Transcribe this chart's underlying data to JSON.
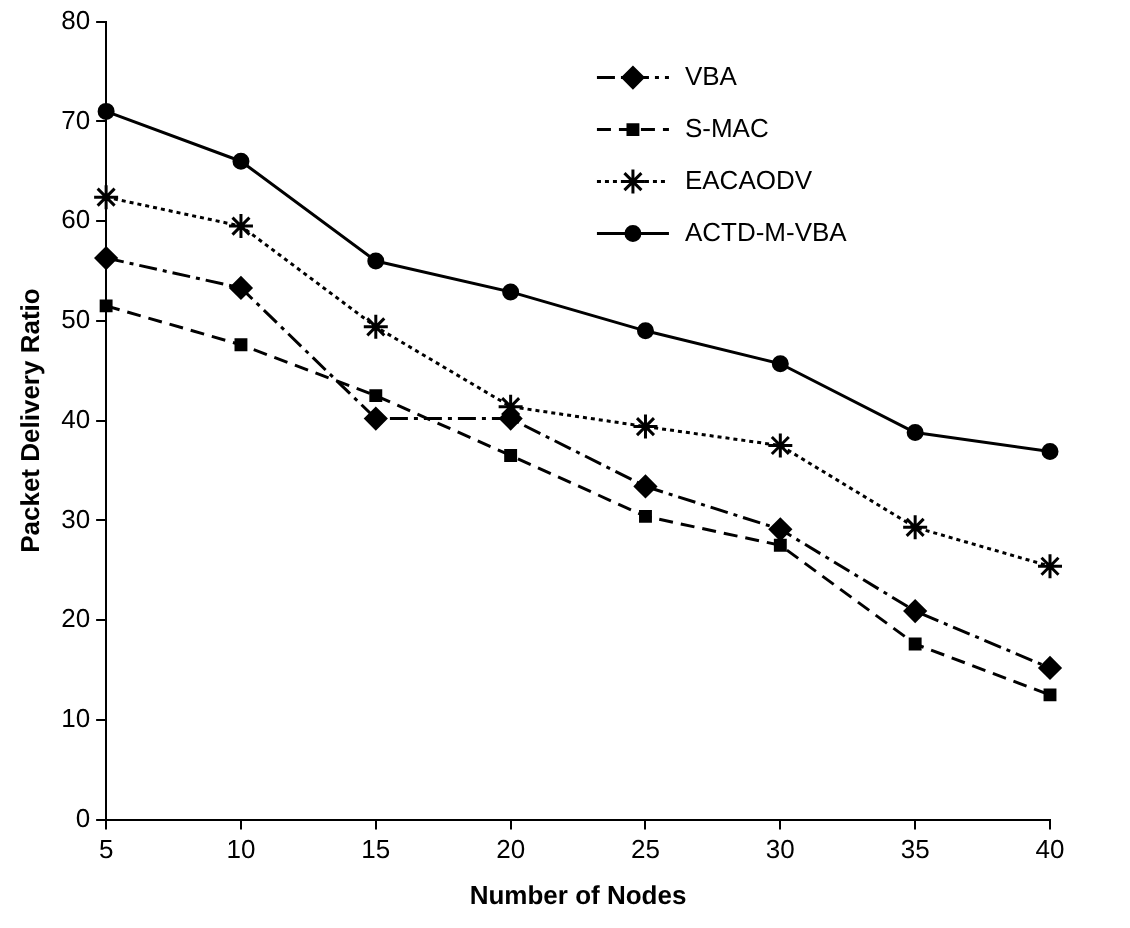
{
  "chart_data": {
    "type": "line",
    "xlabel": "Number of Nodes",
    "ylabel": "Packet Delivery Ratio",
    "x": [
      5,
      10,
      15,
      20,
      25,
      30,
      35,
      40
    ],
    "xlim": [
      5,
      40
    ],
    "xticks": [
      5,
      10,
      15,
      20,
      25,
      30,
      35,
      40
    ],
    "ylim": [
      0,
      80
    ],
    "yticks": [
      0,
      10,
      20,
      30,
      40,
      50,
      60,
      70,
      80
    ],
    "grid": false,
    "legend": "top right",
    "series": [
      {
        "name": "VBA",
        "color": "#000000",
        "marker": "diamond",
        "line_style": "dashdot",
        "values": [
          56.3,
          53.3,
          40.2,
          40.2,
          33.4,
          29.1,
          20.9,
          15.2
        ]
      },
      {
        "name": "S-MAC",
        "color": "#000000",
        "marker": "square",
        "line_style": "dashed",
        "values": [
          51.5,
          47.6,
          42.5,
          36.5,
          30.4,
          27.5,
          17.6,
          12.5
        ]
      },
      {
        "name": "EACAODV",
        "color": "#000000",
        "marker": "cross",
        "line_style": "dotted",
        "values": [
          62.4,
          59.5,
          49.4,
          41.4,
          39.4,
          37.5,
          29.3,
          25.4
        ]
      },
      {
        "name": "ACTD-M-VBA",
        "color": "#000000",
        "marker": "circle",
        "line_style": "solid",
        "values": [
          71,
          66,
          56,
          52.9,
          49,
          45.7,
          38.8,
          36.9
        ]
      }
    ]
  }
}
